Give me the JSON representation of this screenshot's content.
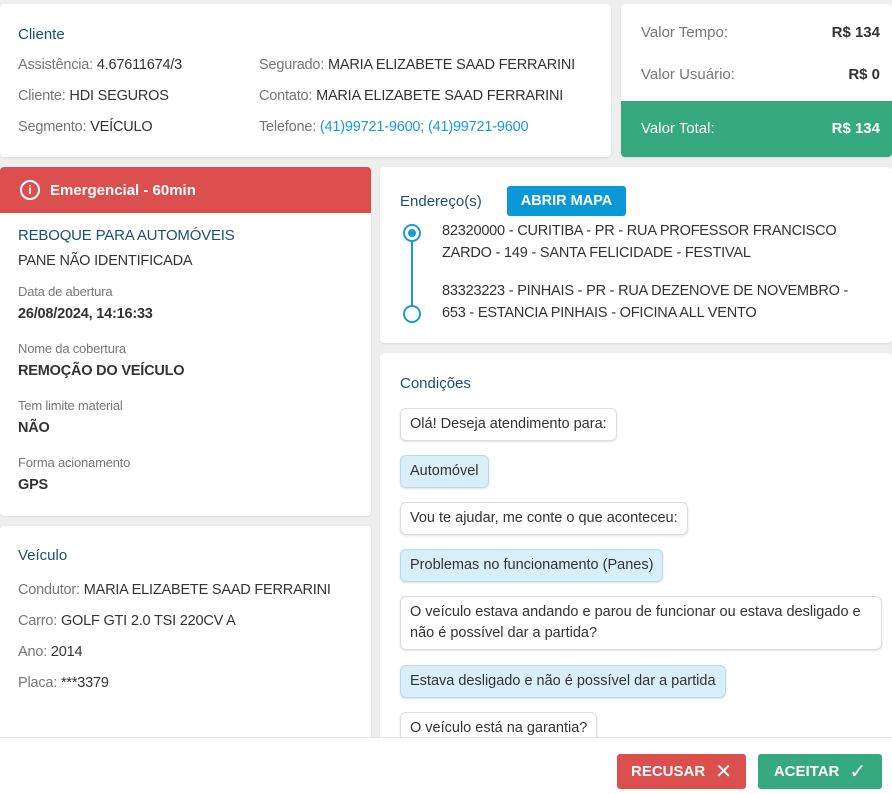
{
  "client": {
    "title": "Cliente",
    "left": [
      {
        "label": "Assistência:",
        "value": "4.67611674/3"
      },
      {
        "label": "Cliente:",
        "value": "HDI SEGUROS"
      },
      {
        "label": "Segmento:",
        "value": "VEÍCULO"
      }
    ],
    "right": [
      {
        "label": "Segurado:",
        "value": "MARIA ELIZABETE SAAD FERRARINI"
      },
      {
        "label": "Contato:",
        "value": "MARIA ELIZABETE SAAD FERRARINI"
      },
      {
        "label": "Telefone:",
        "value": "(41)99721-9600; (41)99721-9600"
      }
    ]
  },
  "values": {
    "tempo_label": "Valor Tempo:",
    "tempo": "R$ 134",
    "usuario_label": "Valor Usuário:",
    "usuario": "R$ 0",
    "total_label": "Valor Total:",
    "total": "R$ 134",
    "total_color": "#36a97e"
  },
  "service": {
    "priority": "Emergencial - 60min",
    "priority_color": "#dc4f4f",
    "type": "REBOQUE PARA AUTOMÓVEIS",
    "problem": "PANE NÃO IDENTIFICADA",
    "fields": [
      {
        "label": "Data de abertura",
        "value": "26/08/2024, 14:16:33"
      },
      {
        "label": "Nome da cobertura",
        "value": "REMOÇÃO DO VEÍCULO"
      },
      {
        "label": "Tem limite material",
        "value": "NÃO"
      },
      {
        "label": "Forma acionamento",
        "value": "GPS"
      }
    ]
  },
  "addresses": {
    "title": "Endereço(s)",
    "map_button": "ABRIR MAPA",
    "items": [
      {
        "line1": "82320000 - CURITIBA - PR - RUA PROFESSOR FRANCISCO",
        "line2": "ZARDO - 149 - SANTA FELICIDADE - FESTIVAL"
      },
      {
        "line1": "83323223 - PINHAIS - PR - RUA DEZENOVE DE NOVEMBRO -",
        "line2": "653 - ESTANCIA PINHAIS - OFICINA ALL VENTO"
      }
    ]
  },
  "vehicle": {
    "title": "Veículo",
    "rows": [
      {
        "label": "Condutor:",
        "value": "MARIA ELIZABETE SAAD FERRARINI"
      },
      {
        "label": "Carro:",
        "value": "GOLF GTI 2.0 TSI 220CV A"
      },
      {
        "label": "Ano:",
        "value": "2014"
      },
      {
        "label": "Placa:",
        "value": "***3379"
      }
    ]
  },
  "conditions": {
    "title": "Condições",
    "messages": [
      {
        "text": "Olá! Deseja atendimento para:",
        "answer": false
      },
      {
        "text": "Automóvel",
        "answer": true
      },
      {
        "text": "Vou te ajudar, me conte o que aconteceu:",
        "answer": false
      },
      {
        "text": "Problemas no funcionamento (Panes)",
        "answer": true
      },
      {
        "text": "O veículo estava andando e parou de funcionar ou estava desligado e não é possível dar a partida?",
        "answer": false
      },
      {
        "text": "Estava desligado e não é possível dar a partida",
        "answer": true
      },
      {
        "text": "O veículo está na garantia?",
        "answer": false
      }
    ]
  },
  "footer": {
    "reject": "RECUSAR",
    "accept": "ACEITAR"
  }
}
